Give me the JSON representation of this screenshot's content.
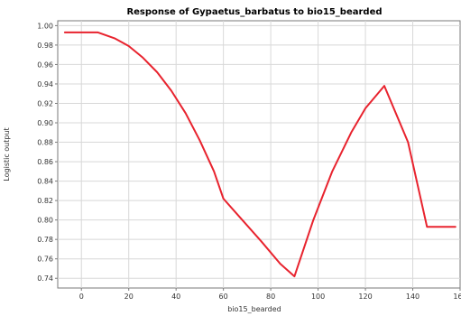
{
  "chart_data": {
    "type": "line",
    "title": "Response of Gypaetus_barbatus to bio15_bearded",
    "xlabel": "bio15_bearded",
    "ylabel": "Logistic output",
    "xlim": [
      -10,
      160
    ],
    "ylim": [
      0.73,
      1.005
    ],
    "x_ticks": [
      0,
      20,
      40,
      60,
      80,
      100,
      120,
      140,
      160
    ],
    "y_ticks": [
      0.74,
      0.76,
      0.78,
      0.8,
      0.82,
      0.84,
      0.86,
      0.88,
      0.9,
      0.92,
      0.94,
      0.96,
      0.98,
      1.0
    ],
    "grid": true,
    "series": [
      {
        "color": "#e8232e",
        "x": [
          -7,
          7,
          14,
          20,
          26,
          32,
          38,
          44,
          50,
          56,
          60,
          68,
          76,
          84,
          90,
          98,
          106,
          114,
          120,
          128,
          138,
          146,
          158
        ],
        "y": [
          0.993,
          0.993,
          0.987,
          0.979,
          0.967,
          0.952,
          0.933,
          0.91,
          0.882,
          0.85,
          0.822,
          0.8,
          0.778,
          0.755,
          0.742,
          0.8,
          0.85,
          0.89,
          0.915,
          0.938,
          0.88,
          0.793,
          0.793
        ]
      }
    ]
  }
}
